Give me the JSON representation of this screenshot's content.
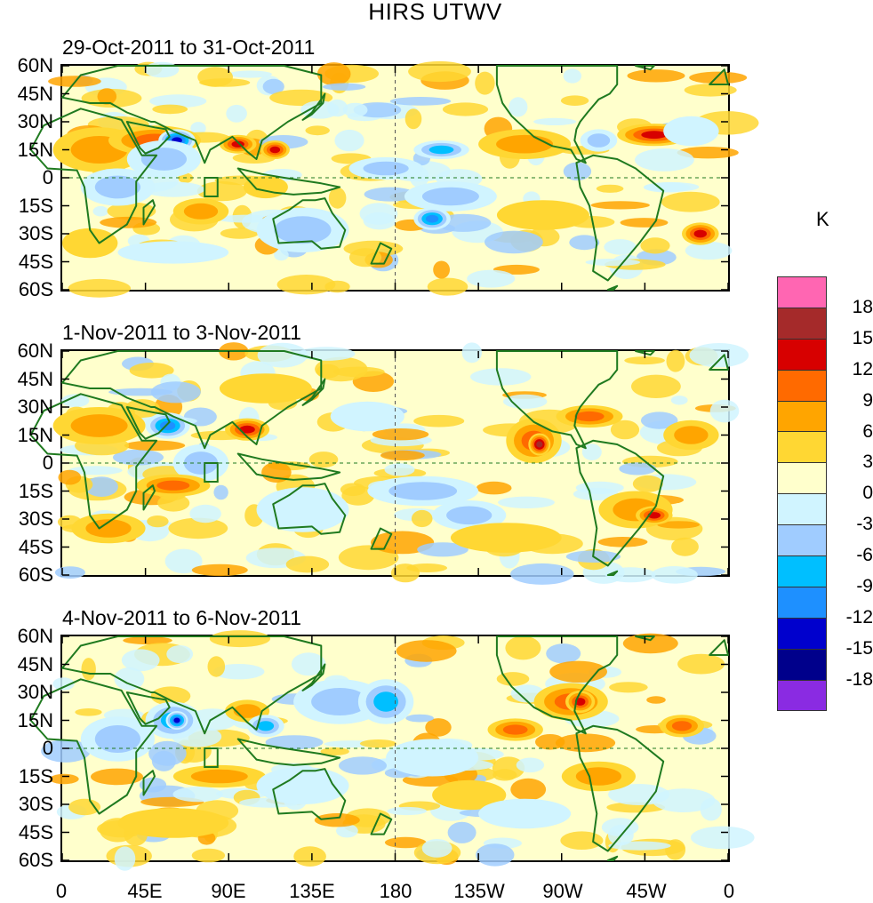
{
  "title": "HIRS UTWV",
  "units": "K",
  "panels": [
    {
      "label": "29-Oct-2011 to 31-Oct-2011"
    },
    {
      "label": "1-Nov-2011 to 3-Nov-2011"
    },
    {
      "label": "4-Nov-2011 to 6-Nov-2011"
    }
  ],
  "y_tick_labels": [
    "60N",
    "45N",
    "30N",
    "15N",
    "0",
    "15S",
    "30S",
    "45S",
    "60S"
  ],
  "x_tick_labels": [
    "0",
    "45E",
    "90E",
    "135E",
    "180",
    "135W",
    "90W",
    "45W",
    "0"
  ],
  "colorbar": {
    "labels": [
      "18",
      "15",
      "12",
      "9",
      "6",
      "3",
      "0",
      "-3",
      "-6",
      "-9",
      "-12",
      "-15",
      "-18"
    ],
    "colors": [
      "#ff66b2",
      "#a52a2a",
      "#d70000",
      "#ff6a00",
      "#ffa500",
      "#ffd733",
      "#ffffcc",
      "#d0f4ff",
      "#a0ccff",
      "#00bfff",
      "#1e90ff",
      "#0000cd",
      "#00008b",
      "#8a2be2"
    ]
  }
}
